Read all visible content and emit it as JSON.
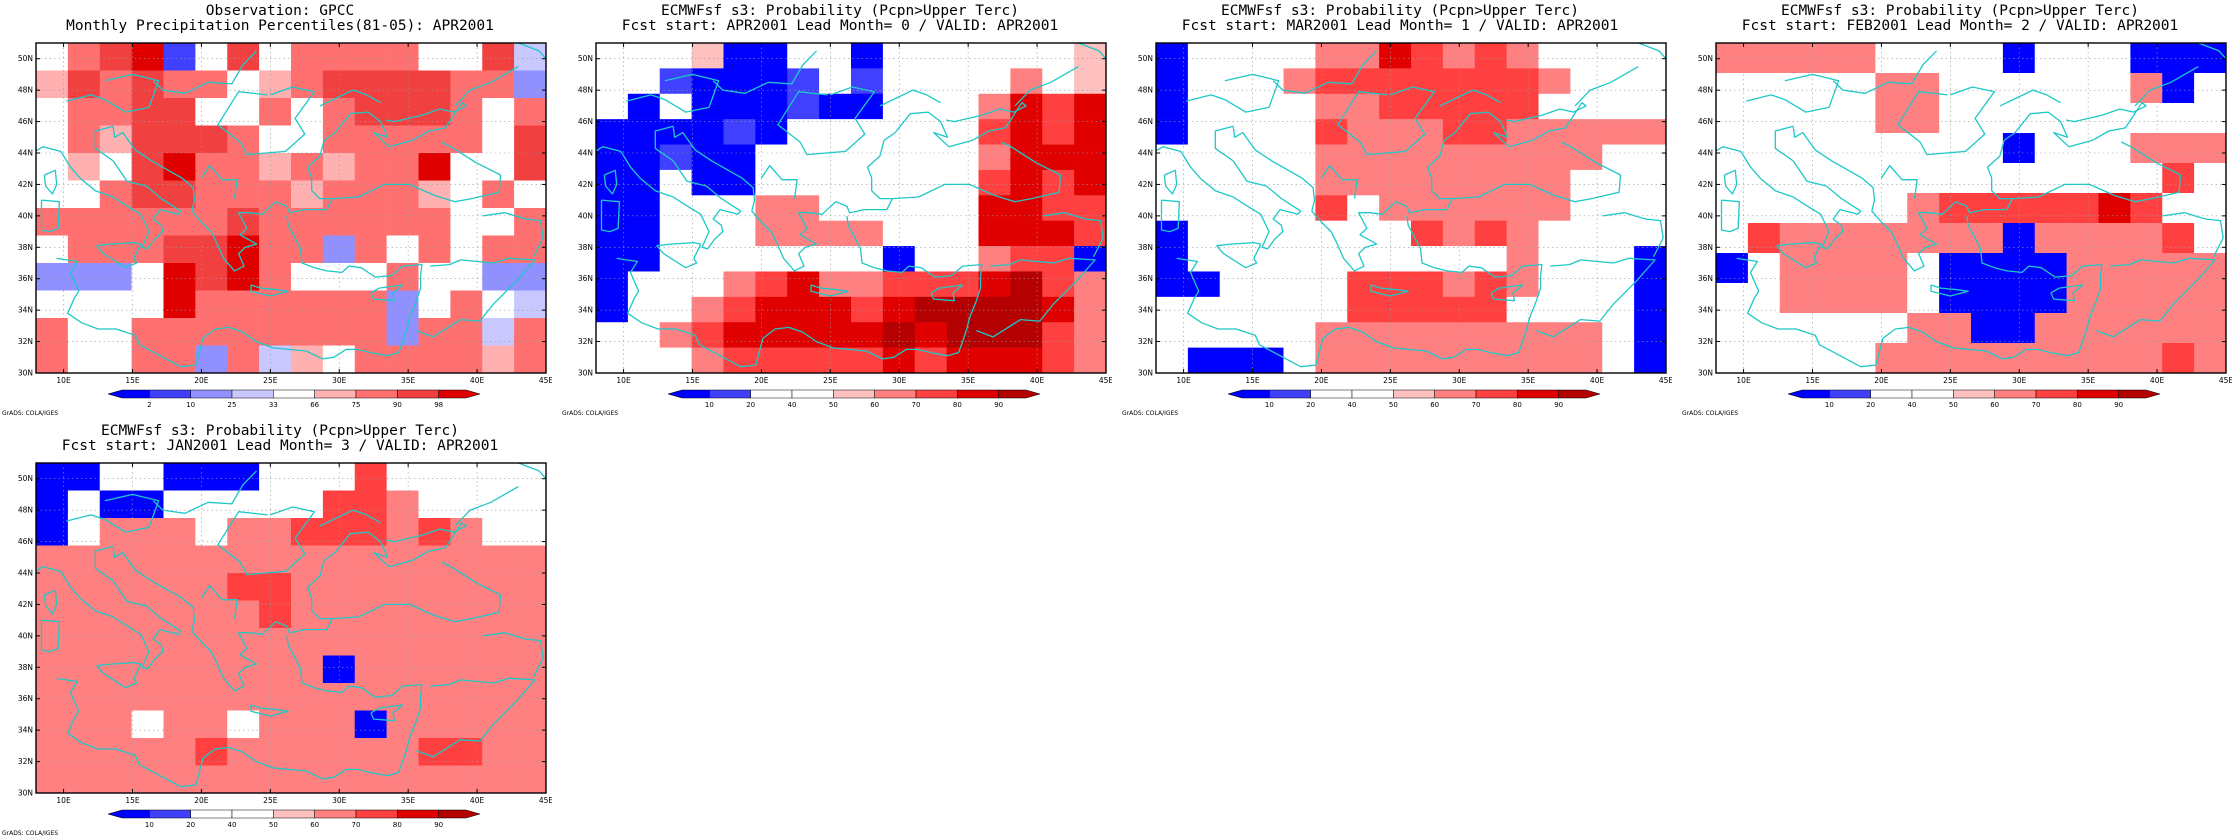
{
  "credit": "GrADS: COLA/IGES",
  "chart_data": [
    {
      "type": "heatmap",
      "title": "Observation: GPCC",
      "subtitle": "Monthly Precipitation Percentiles(81-05): APR2001",
      "xlabel": "",
      "ylabel": "",
      "x_ticks": [
        "10E",
        "15E",
        "20E",
        "25E",
        "30E",
        "35E",
        "40E",
        "45E"
      ],
      "y_ticks": [
        "30N",
        "32N",
        "34N",
        "36N",
        "38N",
        "40N",
        "42N",
        "44N",
        "46N",
        "48N",
        "50N"
      ],
      "xlim": [
        8,
        45
      ],
      "ylim": [
        30,
        51
      ],
      "colorbar": {
        "labels": [
          "2",
          "10",
          "25",
          "33",
          "66",
          "75",
          "90",
          "98"
        ],
        "colors": [
          "#0000ff",
          "#4040ff",
          "#9090ff",
          "#c8c8ff",
          "#ffffff",
          "#ffb0b0",
          "#ff7070",
          "#f04040",
          "#e00000"
        ]
      },
      "grid_rows_north_to_south": [
        [
          4,
          6,
          7,
          8,
          1,
          4,
          7,
          4,
          6,
          6,
          6,
          6,
          4,
          4,
          7,
          3
        ],
        [
          5,
          7,
          6,
          7,
          6,
          6,
          4,
          5,
          6,
          7,
          7,
          7,
          7,
          6,
          6,
          2
        ],
        [
          4,
          6,
          6,
          7,
          7,
          4,
          4,
          6,
          4,
          6,
          7,
          7,
          7,
          6,
          4,
          6
        ],
        [
          4,
          6,
          5,
          7,
          7,
          7,
          6,
          4,
          4,
          6,
          6,
          6,
          6,
          6,
          4,
          7
        ],
        [
          4,
          5,
          4,
          7,
          8,
          6,
          6,
          5,
          6,
          5,
          6,
          6,
          8,
          4,
          4,
          7
        ],
        [
          4,
          4,
          6,
          7,
          7,
          6,
          6,
          6,
          5,
          6,
          6,
          6,
          5,
          4,
          6,
          4
        ],
        [
          6,
          6,
          6,
          6,
          6,
          6,
          7,
          6,
          6,
          6,
          6,
          6,
          6,
          4,
          4,
          6
        ],
        [
          4,
          6,
          6,
          6,
          7,
          7,
          8,
          6,
          6,
          2,
          6,
          4,
          6,
          4,
          6,
          6
        ],
        [
          2,
          2,
          2,
          4,
          8,
          7,
          8,
          6,
          4,
          4,
          4,
          6,
          4,
          4,
          2,
          2
        ],
        [
          4,
          4,
          4,
          4,
          8,
          6,
          6,
          6,
          6,
          6,
          6,
          2,
          4,
          6,
          4,
          3
        ],
        [
          6,
          4,
          4,
          6,
          6,
          6,
          6,
          6,
          6,
          6,
          6,
          2,
          6,
          6,
          3,
          6
        ],
        [
          6,
          4,
          4,
          6,
          6,
          2,
          6,
          3,
          5,
          4,
          6,
          6,
          6,
          6,
          5,
          6
        ]
      ]
    },
    {
      "type": "heatmap",
      "title": "ECMWFsf s3: Probability (Pcpn>Upper Terc)",
      "subtitle": "Fcst start: APR2001   Lead Month= 0 / VALID: APR2001",
      "xlabel": "",
      "ylabel": "",
      "x_ticks": [
        "10E",
        "15E",
        "20E",
        "25E",
        "30E",
        "35E",
        "40E",
        "45E"
      ],
      "y_ticks": [
        "30N",
        "32N",
        "34N",
        "36N",
        "38N",
        "40N",
        "42N",
        "44N",
        "46N",
        "48N",
        "50N"
      ],
      "xlim": [
        8,
        45
      ],
      "ylim": [
        30,
        51
      ],
      "colorbar": {
        "labels": [
          "10",
          "20",
          "40",
          "50",
          "60",
          "70",
          "80",
          "90"
        ],
        "colors": [
          "#0000ff",
          "#4040ff",
          "#ffffff",
          "#ffffff",
          "#ffc0c0",
          "#ff8080",
          "#ff4040",
          "#e00000",
          "#b40000"
        ]
      },
      "grid_rows_north_to_south": [
        [
          3,
          3,
          3,
          4,
          0,
          0,
          3,
          3,
          0,
          3,
          3,
          3,
          3,
          3,
          3,
          4
        ],
        [
          3,
          3,
          1,
          0,
          0,
          0,
          1,
          3,
          1,
          3,
          3,
          3,
          3,
          5,
          3,
          4
        ],
        [
          3,
          0,
          3,
          0,
          0,
          0,
          1,
          0,
          0,
          3,
          3,
          3,
          5,
          7,
          6,
          7
        ],
        [
          0,
          0,
          0,
          0,
          1,
          0,
          3,
          3,
          3,
          3,
          3,
          3,
          6,
          7,
          6,
          7
        ],
        [
          0,
          0,
          1,
          0,
          0,
          3,
          3,
          3,
          3,
          3,
          3,
          3,
          5,
          7,
          7,
          7
        ],
        [
          0,
          0,
          3,
          0,
          0,
          3,
          3,
          3,
          3,
          3,
          3,
          3,
          6,
          7,
          6,
          7
        ],
        [
          0,
          0,
          3,
          3,
          3,
          5,
          5,
          3,
          3,
          3,
          3,
          3,
          7,
          7,
          6,
          6
        ],
        [
          0,
          0,
          3,
          3,
          3,
          5,
          5,
          5,
          5,
          3,
          3,
          3,
          7,
          7,
          7,
          6
        ],
        [
          0,
          0,
          3,
          3,
          3,
          3,
          3,
          3,
          3,
          0,
          3,
          3,
          5,
          6,
          6,
          0
        ],
        [
          0,
          3,
          3,
          3,
          5,
          6,
          7,
          5,
          5,
          6,
          6,
          6,
          7,
          8,
          6,
          5
        ],
        [
          0,
          3,
          3,
          5,
          6,
          7,
          7,
          7,
          6,
          7,
          8,
          8,
          8,
          8,
          7,
          5
        ],
        [
          3,
          3,
          5,
          6,
          7,
          7,
          7,
          7,
          7,
          8,
          7,
          8,
          8,
          8,
          6,
          5
        ],
        [
          3,
          3,
          3,
          5,
          6,
          6,
          6,
          6,
          6,
          7,
          6,
          7,
          7,
          7,
          6,
          5
        ]
      ]
    },
    {
      "type": "heatmap",
      "title": "ECMWFsf s3: Probability (Pcpn>Upper Terc)",
      "subtitle": "Fcst start: MAR2001   Lead Month= 1 / VALID: APR2001",
      "xlabel": "",
      "ylabel": "",
      "x_ticks": [
        "10E",
        "15E",
        "20E",
        "25E",
        "30E",
        "35E",
        "40E",
        "45E"
      ],
      "y_ticks": [
        "30N",
        "32N",
        "34N",
        "36N",
        "38N",
        "40N",
        "42N",
        "44N",
        "46N",
        "48N",
        "50N"
      ],
      "xlim": [
        8,
        45
      ],
      "ylim": [
        30,
        51
      ],
      "colorbar": {
        "labels": [
          "10",
          "20",
          "40",
          "50",
          "60",
          "70",
          "80",
          "90"
        ],
        "colors": [
          "#0000ff",
          "#4040ff",
          "#ffffff",
          "#ffffff",
          "#ffc0c0",
          "#ff8080",
          "#ff4040",
          "#e00000",
          "#b40000"
        ]
      },
      "grid_rows_north_to_south": [
        [
          0,
          3,
          3,
          3,
          3,
          5,
          5,
          7,
          6,
          5,
          6,
          5,
          3,
          3,
          3,
          3
        ],
        [
          0,
          3,
          3,
          3,
          5,
          6,
          6,
          6,
          6,
          6,
          6,
          6,
          5,
          3,
          3,
          3
        ],
        [
          0,
          3,
          3,
          3,
          3,
          5,
          5,
          6,
          6,
          6,
          6,
          6,
          3,
          3,
          3,
          3
        ],
        [
          0,
          3,
          3,
          3,
          3,
          6,
          5,
          5,
          5,
          6,
          6,
          5,
          5,
          5,
          5,
          5
        ],
        [
          3,
          3,
          3,
          3,
          3,
          5,
          5,
          5,
          5,
          5,
          5,
          5,
          5,
          5,
          3,
          3
        ],
        [
          3,
          3,
          3,
          3,
          3,
          5,
          5,
          5,
          5,
          5,
          5,
          5,
          5,
          3,
          3,
          3
        ],
        [
          3,
          3,
          3,
          3,
          3,
          6,
          3,
          5,
          5,
          5,
          5,
          5,
          5,
          3,
          3,
          3
        ],
        [
          0,
          3,
          3,
          3,
          3,
          3,
          3,
          3,
          6,
          5,
          6,
          5,
          3,
          3,
          3,
          3
        ],
        [
          0,
          3,
          3,
          3,
          3,
          3,
          3,
          3,
          3,
          3,
          3,
          5,
          3,
          3,
          3,
          0
        ],
        [
          0,
          0,
          3,
          3,
          3,
          3,
          6,
          6,
          6,
          5,
          6,
          5,
          3,
          3,
          3,
          0
        ],
        [
          3,
          3,
          3,
          3,
          3,
          3,
          6,
          6,
          6,
          6,
          6,
          3,
          3,
          3,
          3,
          0
        ],
        [
          3,
          3,
          3,
          3,
          3,
          5,
          5,
          5,
          5,
          5,
          5,
          5,
          5,
          5,
          3,
          0
        ],
        [
          3,
          0,
          0,
          0,
          3,
          5,
          5,
          5,
          5,
          5,
          5,
          5,
          5,
          5,
          3,
          0
        ]
      ]
    },
    {
      "type": "heatmap",
      "title": "ECMWFsf s3: Probability (Pcpn>Upper Terc)",
      "subtitle": "Fcst start: FEB2001   Lead Month= 2 / VALID: APR2001",
      "xlabel": "",
      "ylabel": "",
      "x_ticks": [
        "10E",
        "15E",
        "20E",
        "25E",
        "30E",
        "35E",
        "40E",
        "45E"
      ],
      "y_ticks": [
        "30N",
        "32N",
        "34N",
        "36N",
        "38N",
        "40N",
        "42N",
        "44N",
        "46N",
        "48N",
        "50N"
      ],
      "xlim": [
        8,
        45
      ],
      "ylim": [
        30,
        51
      ],
      "colorbar": {
        "labels": [
          "10",
          "20",
          "40",
          "50",
          "60",
          "70",
          "80",
          "90"
        ],
        "colors": [
          "#0000ff",
          "#4040ff",
          "#ffffff",
          "#ffffff",
          "#ffc0c0",
          "#ff8080",
          "#ff4040",
          "#e00000",
          "#b40000"
        ]
      },
      "grid_rows_north_to_south": [
        [
          5,
          5,
          5,
          5,
          5,
          3,
          3,
          3,
          3,
          0,
          3,
          3,
          3,
          0,
          0,
          0
        ],
        [
          3,
          3,
          3,
          3,
          3,
          5,
          5,
          3,
          3,
          3,
          3,
          3,
          3,
          5,
          0,
          3
        ],
        [
          3,
          3,
          3,
          3,
          3,
          5,
          5,
          3,
          3,
          3,
          3,
          3,
          3,
          3,
          3,
          3
        ],
        [
          3,
          3,
          3,
          3,
          3,
          3,
          3,
          3,
          3,
          0,
          3,
          3,
          3,
          5,
          5,
          5
        ],
        [
          3,
          3,
          3,
          3,
          3,
          3,
          3,
          3,
          3,
          3,
          3,
          3,
          3,
          3,
          6,
          3
        ],
        [
          3,
          3,
          3,
          3,
          3,
          3,
          5,
          6,
          6,
          6,
          6,
          6,
          7,
          6,
          3,
          3
        ],
        [
          3,
          6,
          5,
          5,
          5,
          5,
          5,
          5,
          5,
          0,
          5,
          5,
          5,
          5,
          6,
          3
        ],
        [
          0,
          3,
          5,
          5,
          5,
          5,
          3,
          0,
          0,
          0,
          0,
          5,
          5,
          5,
          5,
          5
        ],
        [
          3,
          3,
          5,
          5,
          5,
          5,
          3,
          0,
          0,
          0,
          0,
          5,
          5,
          5,
          5,
          5
        ],
        [
          3,
          3,
          3,
          3,
          3,
          3,
          5,
          5,
          0,
          0,
          5,
          5,
          5,
          5,
          5,
          5
        ],
        [
          3,
          3,
          3,
          3,
          3,
          5,
          5,
          5,
          5,
          5,
          5,
          5,
          5,
          5,
          6,
          5
        ]
      ]
    },
    {
      "type": "heatmap",
      "title": "ECMWFsf s3: Probability (Pcpn>Upper Terc)",
      "subtitle": "Fcst start: JAN2001   Lead Month= 3 / VALID: APR2001",
      "xlabel": "",
      "ylabel": "",
      "x_ticks": [
        "10E",
        "15E",
        "20E",
        "25E",
        "30E",
        "35E",
        "40E",
        "45E"
      ],
      "y_ticks": [
        "30N",
        "32N",
        "34N",
        "36N",
        "38N",
        "40N",
        "42N",
        "44N",
        "46N",
        "48N",
        "50N"
      ],
      "xlim": [
        8,
        45
      ],
      "ylim": [
        30,
        51
      ],
      "colorbar": {
        "labels": [
          "10",
          "20",
          "40",
          "50",
          "60",
          "70",
          "80",
          "90"
        ],
        "colors": [
          "#0000ff",
          "#4040ff",
          "#ffffff",
          "#ffffff",
          "#ffc0c0",
          "#ff8080",
          "#ff4040",
          "#e00000",
          "#b40000"
        ]
      },
      "grid_rows_north_to_south": [
        [
          0,
          0,
          3,
          3,
          0,
          0,
          0,
          3,
          3,
          3,
          6,
          3,
          3,
          3,
          3,
          3
        ],
        [
          0,
          3,
          0,
          0,
          3,
          3,
          3,
          3,
          3,
          6,
          6,
          5,
          3,
          3,
          3,
          3
        ],
        [
          0,
          3,
          5,
          5,
          5,
          3,
          5,
          5,
          6,
          6,
          6,
          5,
          6,
          5,
          3,
          3
        ],
        [
          5,
          5,
          5,
          5,
          5,
          5,
          5,
          5,
          5,
          5,
          5,
          5,
          5,
          5,
          5,
          5
        ],
        [
          5,
          5,
          5,
          5,
          5,
          5,
          6,
          6,
          5,
          5,
          5,
          5,
          5,
          5,
          5,
          5
        ],
        [
          5,
          5,
          5,
          5,
          5,
          5,
          5,
          6,
          5,
          5,
          5,
          5,
          5,
          5,
          5,
          5
        ],
        [
          5,
          5,
          5,
          5,
          5,
          5,
          5,
          5,
          5,
          5,
          5,
          5,
          5,
          5,
          5,
          5
        ],
        [
          5,
          5,
          5,
          5,
          5,
          5,
          5,
          5,
          5,
          0,
          5,
          5,
          5,
          5,
          5,
          5
        ],
        [
          5,
          5,
          5,
          5,
          5,
          5,
          5,
          5,
          5,
          5,
          5,
          5,
          5,
          5,
          5,
          5
        ],
        [
          5,
          5,
          5,
          3,
          5,
          5,
          3,
          5,
          5,
          5,
          0,
          5,
          5,
          5,
          5,
          5
        ],
        [
          5,
          5,
          5,
          5,
          5,
          6,
          5,
          5,
          5,
          5,
          5,
          5,
          6,
          6,
          5,
          5
        ],
        [
          5,
          5,
          5,
          5,
          5,
          5,
          5,
          5,
          5,
          5,
          5,
          5,
          5,
          5,
          5,
          5
        ]
      ]
    }
  ]
}
